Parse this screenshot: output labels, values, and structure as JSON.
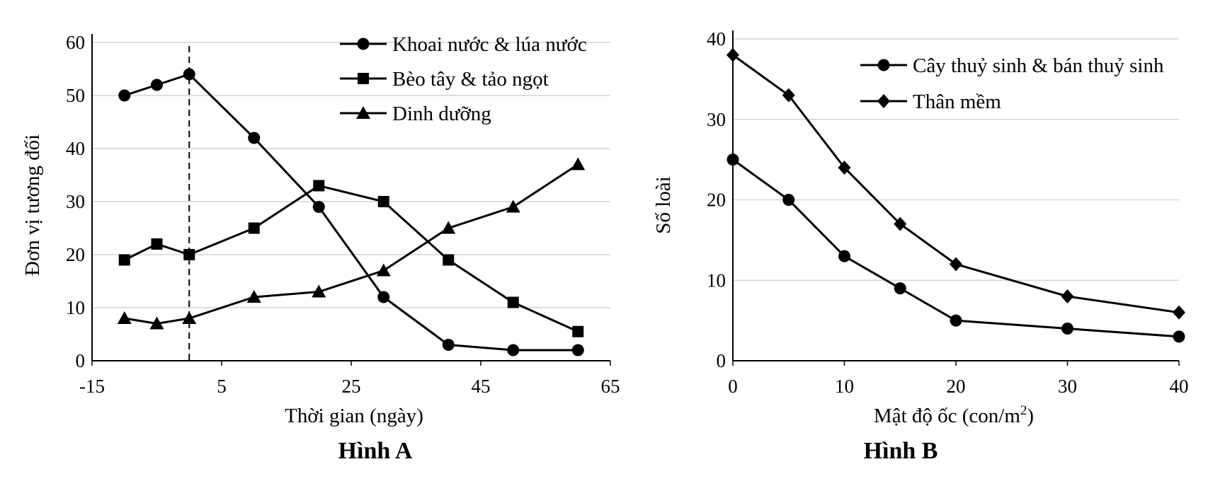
{
  "chart_data": [
    {
      "type": "line",
      "caption": "Hình A",
      "xlabel": "Thời gian (ngày)",
      "ylabel": "Đơn vị tương đối",
      "xlim": [
        -15,
        65
      ],
      "ylim": [
        0,
        60
      ],
      "xticks": [
        "-15",
        "5",
        "25",
        "45",
        "65"
      ],
      "yticks": [
        "0",
        "10",
        "20",
        "30",
        "40",
        "50",
        "60"
      ],
      "grid": true,
      "legend_position": "top-right",
      "vline_x": 0,
      "series": [
        {
          "name": "Khoai nước & lúa nước",
          "marker": "circle",
          "x": [
            -10,
            -5,
            0,
            10,
            20,
            30,
            40,
            50,
            60
          ],
          "y": [
            50,
            52,
            54,
            42,
            29,
            12,
            3,
            2,
            2
          ]
        },
        {
          "name": "Bèo tây & tảo ngọt",
          "marker": "square",
          "x": [
            -10,
            -5,
            0,
            10,
            20,
            30,
            40,
            50,
            60
          ],
          "y": [
            19,
            22,
            20,
            25,
            33,
            30,
            19,
            11,
            5.5
          ]
        },
        {
          "name": "Dinh dưỡng",
          "marker": "triangle",
          "x": [
            -10,
            -5,
            0,
            10,
            20,
            30,
            40,
            50,
            60
          ],
          "y": [
            8,
            7,
            8,
            12,
            13,
            17,
            25,
            29,
            37
          ]
        }
      ]
    },
    {
      "type": "line",
      "caption": "Hình B",
      "xlabel": "Mật độ ốc (con/m",
      "xlabel_sup": "2",
      "xlabel_tail": ")",
      "ylabel": "Số loài",
      "xlim": [
        0,
        40
      ],
      "ylim": [
        0,
        40
      ],
      "xticks": [
        "0",
        "10",
        "20",
        "30",
        "40"
      ],
      "yticks": [
        "0",
        "10",
        "20",
        "30",
        "40"
      ],
      "grid": true,
      "legend_position": "top-right",
      "series": [
        {
          "name": "Cây thuỷ sinh & bán thuỷ sinh",
          "marker": "circle",
          "x": [
            0,
            5,
            10,
            15,
            20,
            30,
            40
          ],
          "y": [
            25,
            20,
            13,
            9,
            5,
            4,
            3
          ]
        },
        {
          "name": "Thân mềm",
          "marker": "diamond",
          "x": [
            0,
            5,
            10,
            15,
            20,
            30,
            40
          ],
          "y": [
            38,
            33,
            24,
            17,
            12,
            8,
            6
          ]
        }
      ]
    }
  ]
}
